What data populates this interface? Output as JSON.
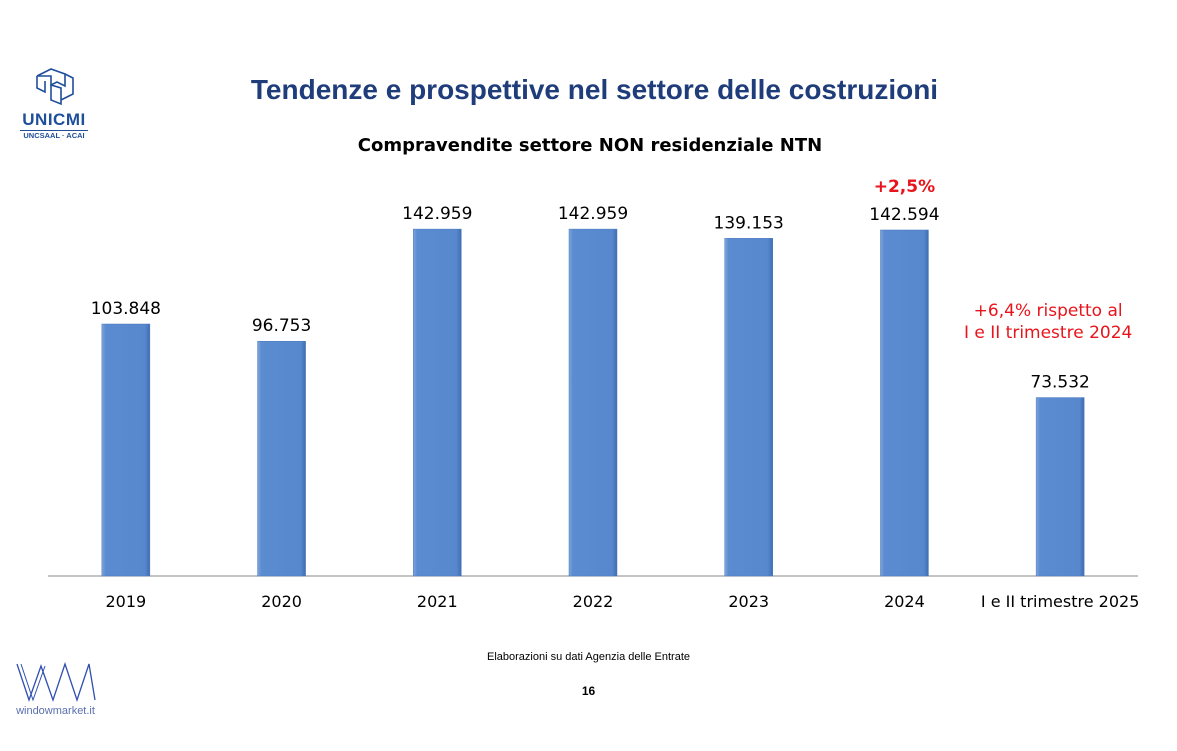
{
  "header": {
    "title": "Tendenze e prospettive nel settore delle costruzioni",
    "logo_name": "UNICMI",
    "logo_sub": "UNCSAAL · ACAI"
  },
  "footer": {
    "source": "Elaborazioni su dati Agenzia delle Entrate",
    "page_number": "16",
    "brand": "windowmarket.it"
  },
  "colors": {
    "bar": "#5b8bd0",
    "highlight": "#e8141b",
    "title": "#1f3d7a"
  },
  "chart_data": {
    "type": "bar",
    "title": "Compravendite settore NON residenziale NTN",
    "categories": [
      "2019",
      "2020",
      "2021",
      "2022",
      "2023",
      "2024",
      "I e II trimestre 2025"
    ],
    "values": [
      103848,
      96753,
      142959,
      142959,
      139153,
      142594,
      73532
    ],
    "value_labels": [
      "103.848",
      "96.753",
      "142.959",
      "142.959",
      "139.153",
      "142.594",
      "73.532"
    ],
    "ylim": [
      0,
      150000
    ],
    "xlabel": "",
    "ylabel": "",
    "grid": false,
    "annotations": [
      {
        "category": "2024",
        "text": "+2,5%"
      },
      {
        "category": "I e II trimestre 2025",
        "lines": [
          "+6,4% rispetto al",
          "I e II trimestre 2024"
        ]
      }
    ]
  }
}
